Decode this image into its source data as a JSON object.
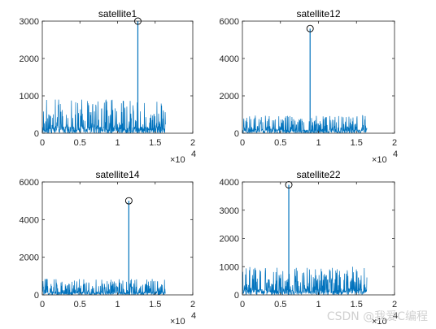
{
  "watermark": "CSDN @我爱C编程",
  "colors": {
    "series": "#0072bd",
    "axis": "#262626",
    "background": "#ffffff"
  },
  "chart_data": [
    {
      "type": "line",
      "title": "satellite1",
      "xlim": [
        0,
        20000
      ],
      "ylim": [
        0,
        3000
      ],
      "xticks": [
        "0",
        "0.5",
        "1",
        "1.5",
        "2"
      ],
      "yticks": [
        "0",
        "1000",
        "2000",
        "3000"
      ],
      "x_exponent": "×10",
      "x_exponent_power": "4",
      "noise": {
        "x_range": [
          0,
          16368
        ],
        "typical_level": 300,
        "max_level": 900
      },
      "peak": {
        "x": 12700,
        "y": 3000,
        "marker": "circle"
      }
    },
    {
      "type": "line",
      "title": "satellite12",
      "xlim": [
        0,
        20000
      ],
      "ylim": [
        0,
        6000
      ],
      "xticks": [
        "0",
        "0.5",
        "1",
        "1.5",
        "2"
      ],
      "yticks": [
        "0",
        "2000",
        "4000",
        "6000"
      ],
      "x_exponent": "×10",
      "x_exponent_power": "4",
      "noise": {
        "x_range": [
          0,
          16368
        ],
        "typical_level": 350,
        "max_level": 950
      },
      "peak": {
        "x": 8900,
        "y": 5600,
        "marker": "circle"
      }
    },
    {
      "type": "line",
      "title": "satellite14",
      "xlim": [
        0,
        20000
      ],
      "ylim": [
        0,
        6000
      ],
      "xticks": [
        "0",
        "0.5",
        "1",
        "1.5",
        "2"
      ],
      "yticks": [
        "0",
        "2000",
        "4000",
        "6000"
      ],
      "x_exponent": "×10",
      "x_exponent_power": "4",
      "noise": {
        "x_range": [
          0,
          16368
        ],
        "typical_level": 300,
        "max_level": 850
      },
      "peak": {
        "x": 11500,
        "y": 5000,
        "marker": "circle"
      }
    },
    {
      "type": "line",
      "title": "satellite22",
      "xlim": [
        0,
        20000
      ],
      "ylim": [
        0,
        4000
      ],
      "xticks": [
        "0",
        "0.5",
        "1",
        "1.5",
        "2"
      ],
      "yticks": [
        "0",
        "1000",
        "2000",
        "3000",
        "4000"
      ],
      "x_exponent": "×10",
      "x_exponent_power": "4",
      "noise": {
        "x_range": [
          0,
          16368
        ],
        "typical_level": 350,
        "max_level": 1000
      },
      "peak": {
        "x": 6100,
        "y": 3900,
        "marker": "circle"
      }
    }
  ]
}
